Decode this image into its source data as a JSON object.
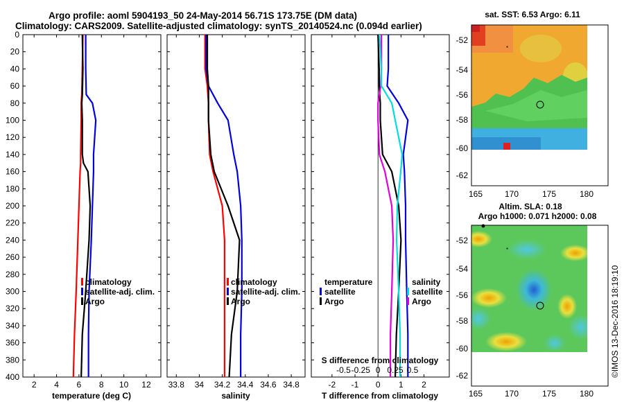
{
  "title_line1": "Argo profile: aoml 5904193_50 24-May-2014 56.71S 173.75E (DM data)",
  "title_line2": "Climatology: CARS2009. Satellite-adjusted climatology: synTS_20140524.nc (0.094d earlier)",
  "watermark": "©IMOS 13-Dec-2016 18:19:10",
  "colors": {
    "climatology": "#ff0000",
    "satellite": "#0000dd",
    "argo": "#000000",
    "salinity": "#dd00dd",
    "salinity_sat": "#00dddd"
  },
  "depth_ticks": [
    0,
    20,
    40,
    60,
    80,
    100,
    120,
    140,
    160,
    180,
    200,
    220,
    240,
    260,
    280,
    300,
    320,
    340,
    360,
    380,
    400
  ],
  "legend": {
    "climatology": "climatology",
    "satellite_adj": "satellite-adj. clim.",
    "argo": "Argo",
    "temperature": "temperature",
    "salinity": "salinity",
    "satellite": "satellite"
  },
  "chart_data": [
    {
      "type": "line",
      "title": "",
      "xlabel": "temperature (deg C)",
      "ylabel": "",
      "xlim": [
        1,
        13.3
      ],
      "ylim": [
        400,
        0
      ],
      "x_ticks": [
        2,
        4,
        6,
        8,
        10,
        12
      ],
      "x_tick_labels": [
        "2",
        "4",
        "6",
        "8",
        "10",
        "12"
      ],
      "depth": [
        0,
        40,
        70,
        80,
        100,
        140,
        150,
        160,
        200,
        240,
        300,
        350,
        400
      ],
      "series": [
        {
          "name": "climatology",
          "color": "#ff0000",
          "values": [
            6.35,
            6.3,
            6.25,
            6.2,
            6.2,
            6.15,
            6.15,
            6.1,
            6.0,
            5.9,
            5.75,
            5.6,
            5.5
          ]
        },
        {
          "name": "satellite-adj. clim.",
          "color": "#0000dd",
          "values": [
            6.6,
            6.6,
            6.65,
            7.2,
            7.5,
            7.3,
            7.3,
            7.3,
            7.2,
            7.1,
            6.9,
            6.85,
            6.85
          ]
        },
        {
          "name": "Argo",
          "color": "#000000",
          "values": [
            6.3,
            6.35,
            6.3,
            6.25,
            6.3,
            6.3,
            6.4,
            6.8,
            7.0,
            6.9,
            6.6,
            6.3,
            6.2
          ]
        }
      ]
    },
    {
      "type": "line",
      "title": "",
      "xlabel": "salinity",
      "ylabel": "",
      "xlim": [
        33.72,
        34.92
      ],
      "ylim": [
        400,
        0
      ],
      "x_ticks": [
        33.8,
        34.0,
        34.2,
        34.4,
        34.6,
        34.8
      ],
      "x_tick_labels": [
        "33.8",
        "34",
        "34.2",
        "34.4",
        "34.6",
        "34.8"
      ],
      "depth": [
        0,
        40,
        60,
        80,
        100,
        140,
        160,
        200,
        240,
        300,
        350,
        400
      ],
      "series": [
        {
          "name": "climatology",
          "color": "#ff0000",
          "values": [
            34.05,
            34.05,
            34.07,
            34.08,
            34.08,
            34.09,
            34.12,
            34.2,
            34.22,
            34.22,
            34.22,
            34.22
          ]
        },
        {
          "name": "satellite-adj. clim.",
          "color": "#0000dd",
          "values": [
            34.06,
            34.06,
            34.08,
            34.16,
            34.25,
            34.3,
            34.33,
            34.36,
            34.37,
            34.37,
            34.36,
            34.36
          ]
        },
        {
          "name": "Argo",
          "color": "#000000",
          "values": [
            34.07,
            34.07,
            34.08,
            34.08,
            34.08,
            34.1,
            34.13,
            34.25,
            34.35,
            34.33,
            34.28,
            34.26
          ]
        }
      ]
    },
    {
      "type": "line",
      "title": "",
      "xlabel": "T difference from climatology",
      "x2label": "S difference from climatology",
      "ylabel": "",
      "xlim": [
        -2.9,
        3.1
      ],
      "ylim": [
        400,
        0
      ],
      "x_ticks": [
        -2,
        -1,
        0,
        1,
        2
      ],
      "x_tick_labels": [
        "-2",
        "-1",
        "0",
        "1",
        "2"
      ],
      "x2_ticks": [
        -0.5,
        -0.25,
        0,
        0.25,
        0.5
      ],
      "x2_tick_labels": [
        "-0.5",
        "-0.25",
        "0",
        "0.25",
        "0.5"
      ],
      "depth": [
        0,
        40,
        60,
        80,
        100,
        140,
        160,
        200,
        240,
        300,
        350,
        400
      ],
      "series": [
        {
          "name": "temperature Argo",
          "color": "#000000",
          "values": [
            0.0,
            0.05,
            0.05,
            0.1,
            0.1,
            0.2,
            0.6,
            0.9,
            1.0,
            0.9,
            0.8,
            0.75
          ]
        },
        {
          "name": "temperature satellite",
          "color": "#0000dd",
          "values": [
            0.45,
            0.45,
            0.4,
            0.9,
            1.3,
            1.1,
            1.15,
            1.2,
            1.2,
            1.25,
            1.3,
            1.3
          ]
        },
        {
          "name": "salinity Argo",
          "color": "#dd00dd",
          "values": [
            0.05,
            0.05,
            0.04,
            0.0,
            0.0,
            0.02,
            0.1,
            0.2,
            0.22,
            0.2,
            0.18,
            0.18
          ]
        },
        {
          "name": "salinity satellite",
          "color": "#00dddd",
          "values": [
            0.02,
            0.05,
            0.05,
            0.2,
            0.25,
            0.35,
            0.33,
            0.28,
            0.27,
            0.3,
            0.32,
            0.32
          ]
        }
      ]
    }
  ],
  "maps": {
    "top": {
      "title": "sat. SST: 6.53 Argo: 6.11",
      "lon_ticks": [
        "165",
        "170",
        "175",
        "180"
      ],
      "lat_ticks": [
        "-52",
        "-54",
        "-56",
        "-58",
        "-60",
        "-62"
      ]
    },
    "bottom": {
      "title1": "Altim. SLA: 0.18",
      "title2": "Argo h1000: 0.071 h2000: 0.08",
      "lon_ticks": [
        "165",
        "170",
        "175",
        "180"
      ],
      "lat_ticks": [
        "-52",
        "-54",
        "-56",
        "-58",
        "-60",
        "-62"
      ]
    }
  }
}
